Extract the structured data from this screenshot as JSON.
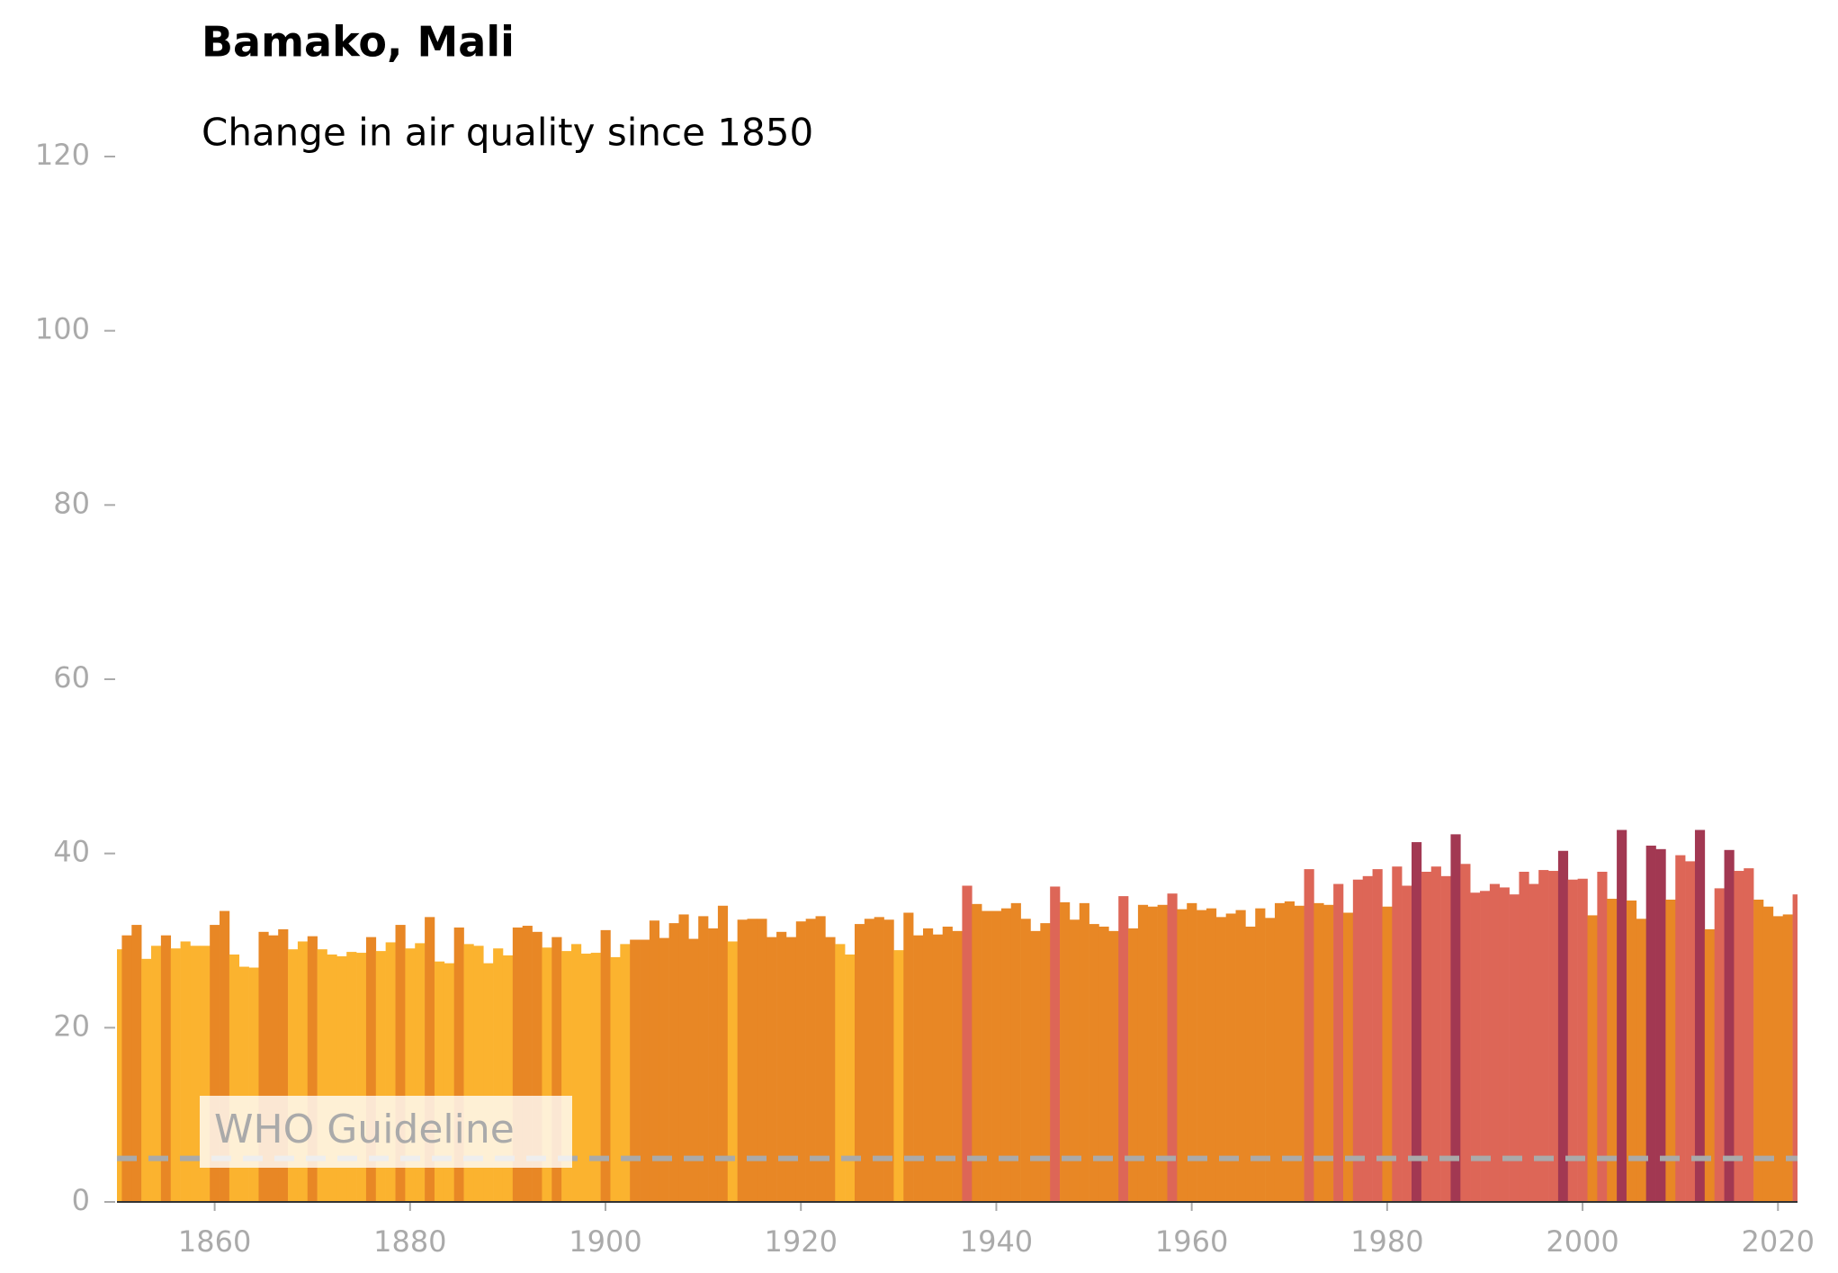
{
  "chart_data": {
    "type": "bar",
    "title": "Bamako, Mali",
    "subtitle": "Change in air quality since 1850",
    "x": [
      1850,
      1851,
      1852,
      1853,
      1854,
      1855,
      1856,
      1857,
      1858,
      1859,
      1860,
      1861,
      1862,
      1863,
      1864,
      1865,
      1866,
      1867,
      1868,
      1869,
      1870,
      1871,
      1872,
      1873,
      1874,
      1875,
      1876,
      1877,
      1878,
      1879,
      1880,
      1881,
      1882,
      1883,
      1884,
      1885,
      1886,
      1887,
      1888,
      1889,
      1890,
      1891,
      1892,
      1893,
      1894,
      1895,
      1896,
      1897,
      1898,
      1899,
      1900,
      1901,
      1902,
      1903,
      1904,
      1905,
      1906,
      1907,
      1908,
      1909,
      1910,
      1911,
      1912,
      1913,
      1914,
      1915,
      1916,
      1917,
      1918,
      1919,
      1920,
      1921,
      1922,
      1923,
      1924,
      1925,
      1926,
      1927,
      1928,
      1929,
      1930,
      1931,
      1932,
      1933,
      1934,
      1935,
      1936,
      1937,
      1938,
      1939,
      1940,
      1941,
      1942,
      1943,
      1944,
      1945,
      1946,
      1947,
      1948,
      1949,
      1950,
      1951,
      1952,
      1953,
      1954,
      1955,
      1956,
      1957,
      1958,
      1959,
      1960,
      1961,
      1962,
      1963,
      1964,
      1965,
      1966,
      1967,
      1968,
      1969,
      1970,
      1971,
      1972,
      1973,
      1974,
      1975,
      1976,
      1977,
      1978,
      1979,
      1980,
      1981,
      1982,
      1983,
      1984,
      1985,
      1986,
      1987,
      1988,
      1989,
      1990,
      1991,
      1992,
      1993,
      1994,
      1995,
      1996,
      1997,
      1998,
      1999,
      2000,
      2001,
      2002,
      2003,
      2004,
      2005,
      2006,
      2007,
      2008,
      2009,
      2010,
      2011,
      2012,
      2013,
      2014,
      2015,
      2016,
      2017,
      2018,
      2019,
      2020,
      2021,
      2022
    ],
    "series": [
      {
        "values": [
          29.0,
          30.6,
          31.8,
          27.9,
          29.4,
          30.6,
          29.1,
          29.9,
          29.4,
          29.4,
          31.8,
          33.4,
          28.4,
          27.0,
          26.9,
          31.0,
          30.6,
          31.3,
          29.0,
          29.9,
          30.5,
          29.0,
          28.4,
          28.2,
          28.7,
          28.6,
          30.4,
          28.8,
          29.8,
          31.8,
          29.1,
          29.7,
          32.7,
          27.6,
          27.4,
          31.5,
          29.6,
          29.4,
          27.4,
          29.1,
          28.3,
          31.5,
          31.7,
          31.0,
          29.2,
          30.4,
          28.8,
          29.6,
          28.5,
          28.6,
          31.2,
          28.1,
          29.6,
          30.1,
          30.1,
          32.3,
          30.3,
          32.0,
          33.0,
          30.2,
          32.8,
          31.4,
          34.0,
          29.9,
          32.4,
          32.5,
          32.5,
          30.4,
          31.0,
          30.4,
          32.2,
          32.5,
          32.8,
          30.4,
          29.6,
          28.4,
          31.9,
          32.5,
          32.7,
          32.4,
          28.9,
          33.2,
          30.6,
          31.4,
          30.7,
          31.6,
          31.1,
          36.3,
          34.2,
          33.4,
          33.4,
          33.7,
          34.3,
          32.5,
          31.1,
          32.0,
          36.2,
          34.4,
          32.4,
          34.3,
          31.9,
          31.6,
          31.1,
          35.1,
          31.4,
          34.1,
          33.9,
          34.1,
          35.4,
          33.6,
          34.3,
          33.5,
          33.7,
          32.7,
          33.1,
          33.5,
          31.6,
          33.7,
          32.6,
          34.3,
          34.5,
          34.0,
          38.2,
          34.3,
          34.1,
          36.5,
          33.2,
          37.0,
          37.4,
          38.2,
          33.9,
          38.5,
          36.3,
          41.3,
          37.9,
          38.5,
          37.4,
          42.2,
          38.8,
          35.5,
          35.7,
          36.5,
          36.1,
          35.3,
          37.9,
          36.5,
          38.1,
          38.0,
          40.3,
          37.0,
          37.1,
          32.9,
          37.9,
          34.8,
          42.7,
          34.6,
          32.5,
          40.9,
          40.5,
          34.7,
          39.8,
          39.1,
          42.7,
          31.3,
          36.0,
          40.4,
          38.0,
          38.3,
          34.7,
          33.9,
          32.8,
          33.0,
          35.3
        ],
        "colors": [
          "#fbb32f",
          "#e88725",
          "#e88725",
          "#fbb32f",
          "#fbb32f",
          "#e88725",
          "#fbb32f",
          "#fbb32f",
          "#fbb32f",
          "#fbb32f",
          "#e88725",
          "#e88725",
          "#fbb32f",
          "#fbb32f",
          "#fbb32f",
          "#e88725",
          "#e88725",
          "#e88725",
          "#fbb32f",
          "#fbb32f",
          "#e88725",
          "#fbb32f",
          "#fbb32f",
          "#fbb32f",
          "#fbb32f",
          "#fbb32f",
          "#e88725",
          "#fbb32f",
          "#fbb32f",
          "#e88725",
          "#fbb32f",
          "#fbb32f",
          "#e88725",
          "#fbb32f",
          "#fbb32f",
          "#e88725",
          "#fbb32f",
          "#fbb32f",
          "#fbb32f",
          "#fbb32f",
          "#fbb32f",
          "#e88725",
          "#e88725",
          "#e88725",
          "#fbb32f",
          "#e88725",
          "#fbb32f",
          "#fbb32f",
          "#fbb32f",
          "#fbb32f",
          "#e88725",
          "#fbb32f",
          "#fbb32f",
          "#e88725",
          "#e88725",
          "#e88725",
          "#e88725",
          "#e88725",
          "#e88725",
          "#e88725",
          "#e88725",
          "#e88725",
          "#e88725",
          "#fbb32f",
          "#e88725",
          "#e88725",
          "#e88725",
          "#e88725",
          "#e88725",
          "#e88725",
          "#e88725",
          "#e88725",
          "#e88725",
          "#e88725",
          "#fbb32f",
          "#fbb32f",
          "#e88725",
          "#e88725",
          "#e88725",
          "#e88725",
          "#fbb32f",
          "#e88725",
          "#e88725",
          "#e88725",
          "#e88725",
          "#e88725",
          "#e88725",
          "#dd6657",
          "#e88725",
          "#e88725",
          "#e88725",
          "#e88725",
          "#e88725",
          "#e88725",
          "#e88725",
          "#e88725",
          "#dd6657",
          "#e88725",
          "#e88725",
          "#e88725",
          "#e88725",
          "#e88725",
          "#e88725",
          "#dd6657",
          "#e88725",
          "#e88725",
          "#e88725",
          "#e88725",
          "#dd6657",
          "#e88725",
          "#e88725",
          "#e88725",
          "#e88725",
          "#e88725",
          "#e88725",
          "#e88725",
          "#e88725",
          "#e88725",
          "#e88725",
          "#e88725",
          "#e88725",
          "#e88725",
          "#dd6657",
          "#e88725",
          "#e88725",
          "#dd6657",
          "#e88725",
          "#dd6657",
          "#dd6657",
          "#dd6657",
          "#e88725",
          "#dd6657",
          "#dd6657",
          "#a23852",
          "#dd6657",
          "#dd6657",
          "#dd6657",
          "#a23852",
          "#dd6657",
          "#dd6657",
          "#dd6657",
          "#dd6657",
          "#dd6657",
          "#dd6657",
          "#dd6657",
          "#dd6657",
          "#dd6657",
          "#dd6657",
          "#a23852",
          "#dd6657",
          "#dd6657",
          "#e88725",
          "#dd6657",
          "#e88725",
          "#a23852",
          "#e88725",
          "#e88725",
          "#a23852",
          "#a23852",
          "#e88725",
          "#dd6657",
          "#dd6657",
          "#a23852",
          "#e88725",
          "#dd6657",
          "#a23852",
          "#dd6657",
          "#dd6657",
          "#e88725",
          "#e88725",
          "#e88725",
          "#e88725",
          "#dd6657"
        ]
      }
    ],
    "xlim": [
      1850,
      2022
    ],
    "xticks": [
      1860,
      1880,
      1900,
      1920,
      1940,
      1960,
      1980,
      2000,
      2020
    ],
    "ylim": [
      0,
      120
    ],
    "yticks": [
      0,
      20,
      40,
      60,
      80,
      100,
      120
    ],
    "reference_line": {
      "label": "WHO Guideline",
      "value": 5,
      "color": "#aaaaaa"
    }
  }
}
